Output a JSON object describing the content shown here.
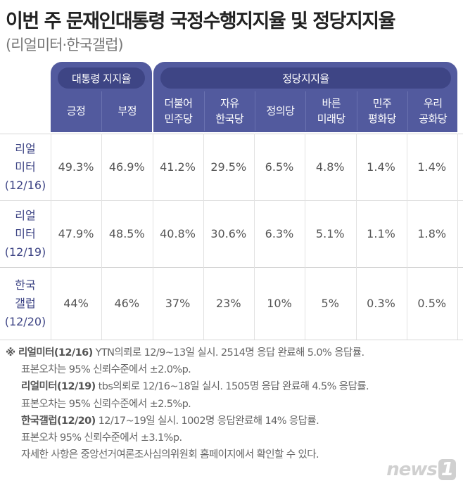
{
  "title": "이번 주 문재인대통령 국정수행지지율 및 정당지지율",
  "subtitle": "(리얼미터·한국갤럽)",
  "colors": {
    "header": "#525a9e",
    "pill": "#3e4585",
    "row_label": "#3e4585"
  },
  "groups": [
    {
      "label": "대통령 지지율"
    },
    {
      "label": "정당지지율"
    }
  ],
  "columns": [
    [
      "긍정",
      ""
    ],
    [
      "부정",
      ""
    ],
    [
      "더불어",
      "민주당"
    ],
    [
      "자유",
      "한국당"
    ],
    [
      "정의당",
      ""
    ],
    [
      "바른",
      "미래당"
    ],
    [
      "민주",
      "평화당"
    ],
    [
      "우리",
      "공화당"
    ]
  ],
  "rows": [
    {
      "label": [
        "리얼",
        "미터",
        "(12/16)"
      ],
      "values": [
        "49.3%",
        "46.9%",
        "41.2%",
        "29.5%",
        "6.5%",
        "4.8%",
        "1.4%",
        "1.4%"
      ]
    },
    {
      "label": [
        "리얼",
        "미터",
        "(12/19)"
      ],
      "values": [
        "47.9%",
        "48.5%",
        "40.8%",
        "30.6%",
        "6.3%",
        "5.1%",
        "1.1%",
        "1.8%"
      ]
    },
    {
      "label": [
        "한국",
        "갤럽",
        "(12/20)"
      ],
      "values": [
        "44%",
        "46%",
        "37%",
        "23%",
        "10%",
        "5%",
        "0.3%",
        "0.5%"
      ]
    }
  ],
  "notes": [
    {
      "bold": "※ 리얼미터(12/16)",
      "text": " YTN의뢰로 12/9~13일 실시. 2514명 응답 완료해 5.0% 응답률."
    },
    {
      "bold": "",
      "text": "표본오차는 95% 신뢰수준에서 ±2.0%p."
    },
    {
      "bold": "리얼미터(12/19)",
      "text": " tbs의뢰로 12/16~18일 실시. 1505명 응답 완료해 4.5% 응답률."
    },
    {
      "bold": "",
      "text": "표본오차는 95% 신뢰수준에서 ±2.5%p."
    },
    {
      "bold": "한국갤럽(12/20)",
      "text": " 12/17~19일 실시. 1002명 응답완료해 14% 응답률."
    },
    {
      "bold": "",
      "text": "표본오차 95% 신뢰수준에서 ±3.1%p."
    },
    {
      "bold": "",
      "text": "자세한 사항은 중앙선거여론조사심의위원회 홈페이지에서 확인할 수 있다."
    }
  ],
  "logo": "news1"
}
